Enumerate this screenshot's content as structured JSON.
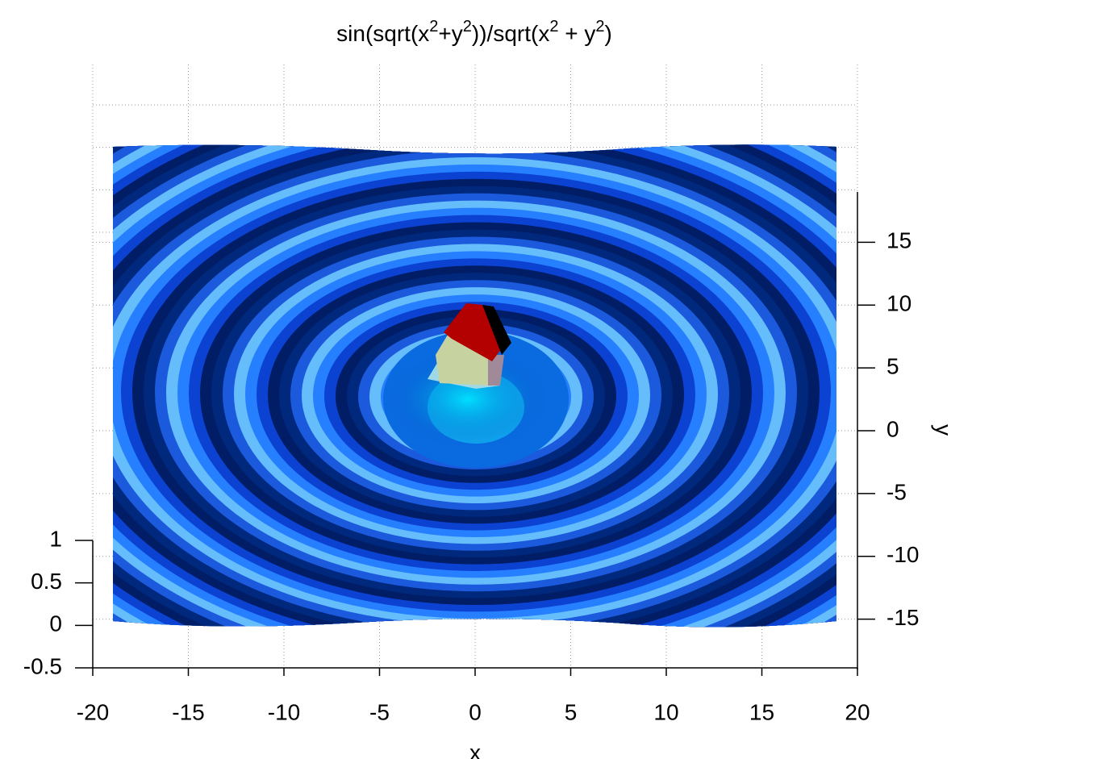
{
  "chart_data": {
    "type": "surface",
    "title": [
      "sin(sqrt(x",
      "2",
      "+y",
      "2",
      "))/sqrt(x",
      "2",
      " + y",
      "2",
      ")"
    ],
    "x_label": "x",
    "y_label": "y",
    "xlim": [
      -20,
      20
    ],
    "xticks": [
      -20,
      -15,
      -10,
      -5,
      0,
      5,
      10,
      15,
      20
    ],
    "ylim": [
      -19,
      19
    ],
    "yticks": [
      -15,
      -10,
      -5,
      0,
      5,
      10,
      15
    ],
    "zlim": [
      -0.5,
      1
    ],
    "zticks": [
      -0.5,
      0,
      0.5,
      1
    ],
    "grid": true
  }
}
